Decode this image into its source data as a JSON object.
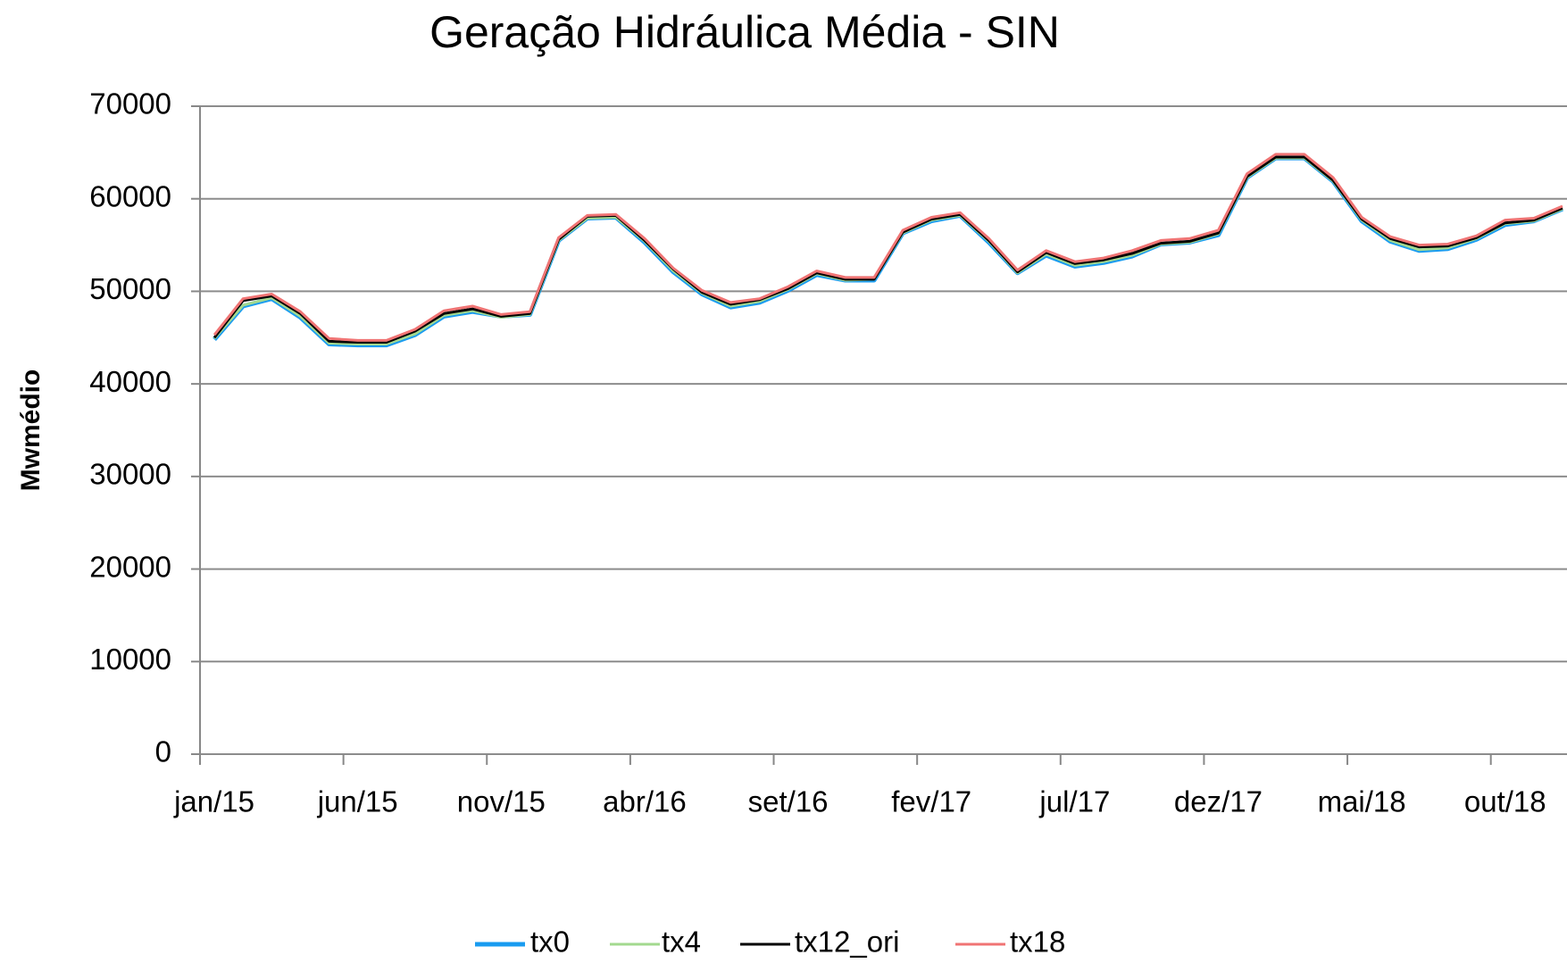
{
  "chart_data": {
    "type": "line",
    "title": "Geração Hidráulica Média - SIN",
    "y_label": "Mwmédio",
    "categories": [
      "jan/15",
      null,
      null,
      null,
      null,
      "jun/15",
      null,
      null,
      null,
      null,
      "nov/15",
      null,
      null,
      null,
      null,
      "abr/16",
      null,
      null,
      null,
      null,
      "set/16",
      null,
      null,
      null,
      null,
      "fev/17",
      null,
      null,
      null,
      null,
      "jul/17",
      null,
      null,
      null,
      null,
      "dez/17",
      null,
      null,
      null,
      null,
      "mai/18",
      null,
      null,
      null,
      null,
      "out/18",
      null,
      null
    ],
    "ylim": [
      0,
      70000
    ],
    "yticks": [
      0,
      10000,
      20000,
      30000,
      40000,
      50000,
      60000,
      70000
    ],
    "grid": true,
    "legend": "bottom",
    "series": [
      {
        "name": "tx0",
        "color": "#1a9cf0",
        "values": [
          44800,
          48400,
          49200,
          47200,
          44300,
          44200,
          44200,
          45300,
          47300,
          47800,
          47300,
          47500,
          55500,
          57900,
          58000,
          55300,
          52100,
          49700,
          48300,
          48800,
          50100,
          51800,
          51200,
          51200,
          56300,
          57600,
          58200,
          55300,
          52000,
          53900,
          52700,
          53100,
          53800,
          55100,
          55300,
          56100,
          62300,
          64400,
          64400,
          61900,
          57600,
          55400,
          54400,
          54600,
          55600,
          57200,
          57600,
          58900
        ]
      },
      {
        "name": "tx4",
        "color": "#a3d98f",
        "values": [
          44900,
          48500,
          49300,
          47300,
          44400,
          44300,
          44300,
          45400,
          47400,
          47900,
          47200,
          47500,
          55500,
          57900,
          58000,
          55400,
          52200,
          49800,
          48400,
          48900,
          50200,
          51900,
          51200,
          51300,
          56300,
          57700,
          58200,
          55400,
          52000,
          54000,
          52800,
          53200,
          53900,
          55100,
          55300,
          56200,
          62300,
          64400,
          64400,
          61900,
          57700,
          55500,
          54500,
          54700,
          55700,
          57300,
          57600,
          58900
        ]
      },
      {
        "name": "tx12_ori",
        "color": "#000000",
        "values": [
          45000,
          49000,
          49500,
          47600,
          44600,
          44500,
          44500,
          45700,
          47600,
          48100,
          47300,
          47600,
          55600,
          58100,
          58200,
          55500,
          52400,
          49900,
          48600,
          49100,
          50300,
          52000,
          51300,
          51300,
          56400,
          57800,
          58300,
          55500,
          52100,
          54200,
          53000,
          53400,
          54100,
          55200,
          55400,
          56300,
          62400,
          64500,
          64500,
          62000,
          57800,
          55700,
          54800,
          54900,
          55800,
          57400,
          57700,
          59000
        ]
      },
      {
        "name": "tx18",
        "color": "#f07474",
        "values": [
          45300,
          49200,
          49700,
          47800,
          44900,
          44700,
          44700,
          45900,
          47900,
          48400,
          47500,
          47800,
          55800,
          58200,
          58300,
          55700,
          52500,
          50100,
          48800,
          49200,
          50500,
          52200,
          51500,
          51500,
          56600,
          58000,
          58500,
          55700,
          52300,
          54400,
          53200,
          53600,
          54400,
          55500,
          55700,
          56600,
          62700,
          64800,
          64800,
          62300,
          58000,
          55900,
          55000,
          55100,
          56000,
          57700,
          57900,
          59200
        ]
      }
    ]
  }
}
